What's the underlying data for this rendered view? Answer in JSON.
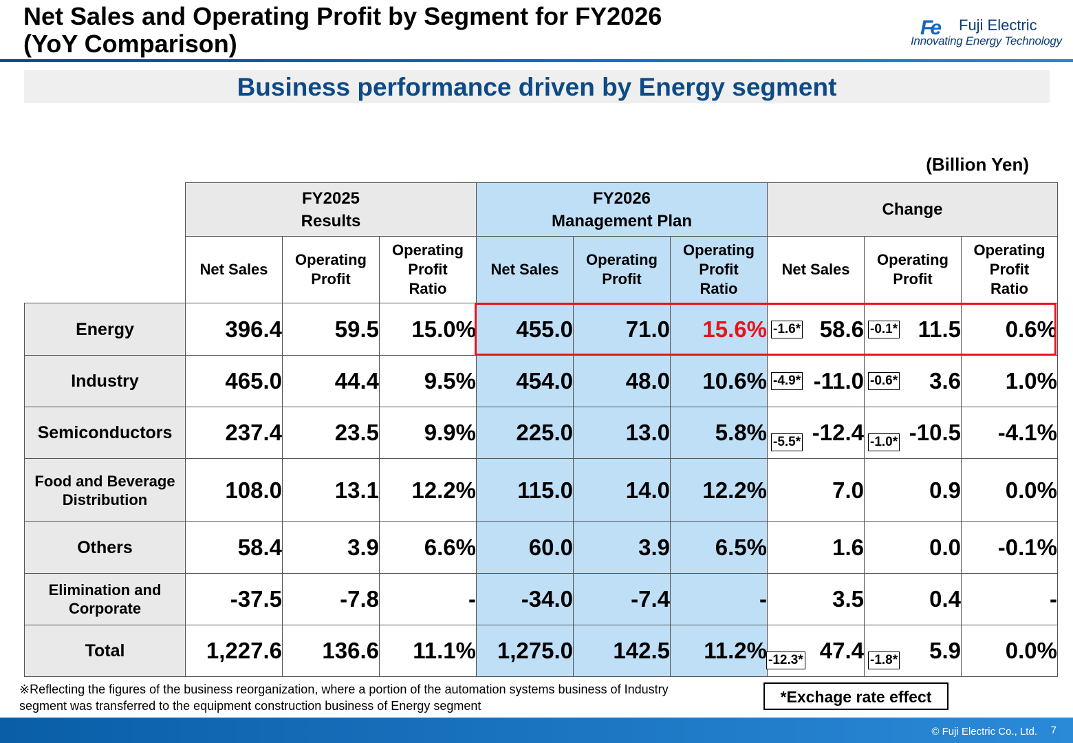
{
  "header": {
    "title_line1": "Net Sales and Operating Profit by Segment for FY2026",
    "title_line2": "(YoY Comparison)",
    "logo_mark": "Fe",
    "logo_name": "Fuji Electric",
    "logo_tagline": "Innovating Energy Technology"
  },
  "banner": "Business performance driven by Energy segment",
  "unit": "(Billion Yen)",
  "table": {
    "groups": {
      "fy2025_l1": "FY2025",
      "fy2025_l2": "Results",
      "fy2026_l1": "FY2026",
      "fy2026_l2": "Management Plan",
      "change": "Change"
    },
    "sub": {
      "net_sales": "Net Sales",
      "op_profit_l1": "Operating",
      "op_profit_l2": "Profit",
      "ratio_l1": "Operating",
      "ratio_l2": "Profit",
      "ratio_l3": "Ratio"
    },
    "rows": [
      {
        "segment_l1": "Energy",
        "segment_l2": "",
        "cells": [
          "396.4",
          "59.5",
          "15.0%",
          "455.0",
          "71.0",
          "15.6%",
          "58.6",
          "11.5",
          "0.6%"
        ],
        "fx_sales": "-1.6*",
        "fx_profit": "-0.1*"
      },
      {
        "segment_l1": "Industry",
        "segment_l2": "",
        "cells": [
          "465.0",
          "44.4",
          "9.5%",
          "454.0",
          "48.0",
          "10.6%",
          "-11.0",
          "3.6",
          "1.0%"
        ],
        "fx_sales": "-4.9*",
        "fx_profit": "-0.6*"
      },
      {
        "segment_l1": "Semiconductors",
        "segment_l2": "",
        "cells": [
          "237.4",
          "23.5",
          "9.9%",
          "225.0",
          "13.0",
          "5.8%",
          "-12.4",
          "-10.5",
          "-4.1%"
        ],
        "fx_sales": "-5.5*",
        "fx_profit": "-1.0*"
      },
      {
        "segment_l1": "Food and Beverage",
        "segment_l2": "Distribution",
        "cells": [
          "108.0",
          "13.1",
          "12.2%",
          "115.0",
          "14.0",
          "12.2%",
          "7.0",
          "0.9",
          "0.0%"
        ],
        "fx_sales": "",
        "fx_profit": ""
      },
      {
        "segment_l1": "Others",
        "segment_l2": "",
        "cells": [
          "58.4",
          "3.9",
          "6.6%",
          "60.0",
          "3.9",
          "6.5%",
          "1.6",
          "0.0",
          "-0.1%"
        ],
        "fx_sales": "",
        "fx_profit": ""
      },
      {
        "segment_l1": "Elimination and",
        "segment_l2": "Corporate",
        "cells": [
          "-37.5",
          "-7.8",
          "-",
          "-34.0",
          "-7.4",
          "-",
          "3.5",
          "0.4",
          "-"
        ],
        "fx_sales": "",
        "fx_profit": ""
      },
      {
        "segment_l1": "Total",
        "segment_l2": "",
        "cells": [
          "1,227.6",
          "136.6",
          "11.1%",
          "1,275.0",
          "142.5",
          "11.2%",
          "47.4",
          "5.9",
          "0.0%"
        ],
        "fx_sales": "-12.3*",
        "fx_profit": "-1.8*"
      }
    ]
  },
  "note_line1": "※Reflecting the figures of the business reorganization, where a portion of the automation systems business of Industry",
  "note_line2": "segment was transferred to the equipment construction business of Energy segment",
  "legend": "*Exchage rate effect",
  "footer": {
    "copyright": "© Fuji Electric Co., Ltd.",
    "page": "7"
  },
  "colors": {
    "title_blue": "#0d4a86",
    "plan_bg": "#bfdff7",
    "highlight_red": "#e8131b",
    "header_gray": "#e9e9e9"
  }
}
